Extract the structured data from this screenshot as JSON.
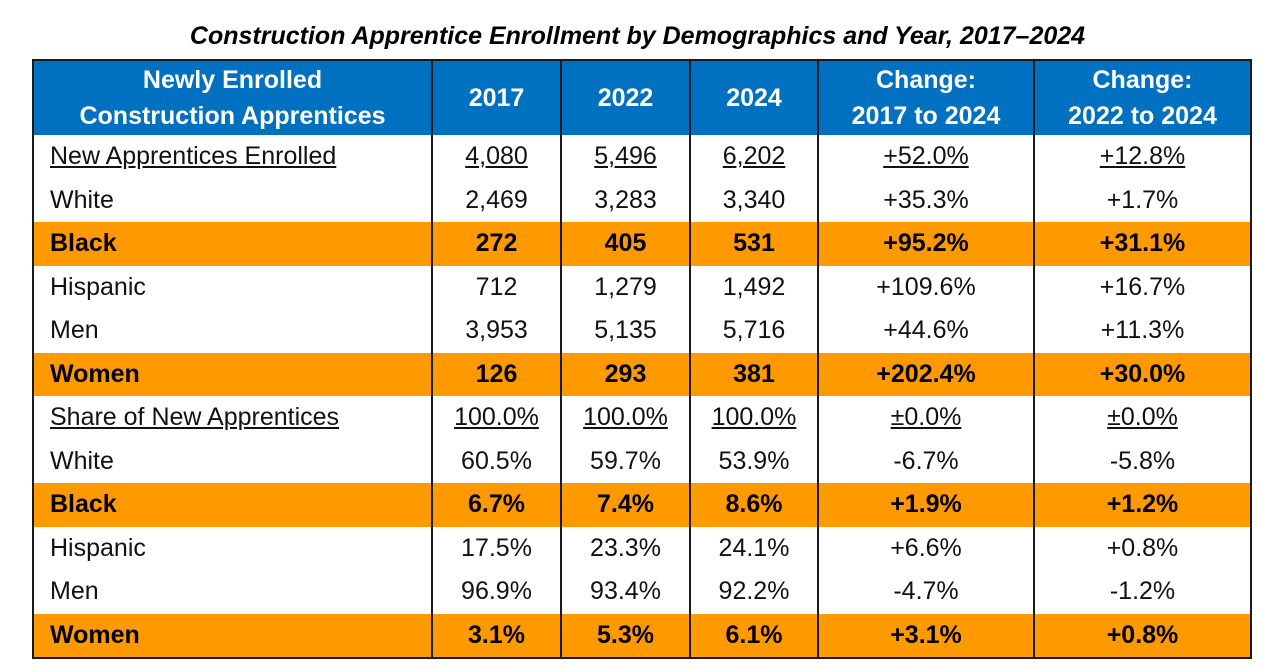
{
  "title": "Construction Apprentice Enrollment by Demographics and Year, 2017–2024",
  "colors": {
    "header_bg": "#0070c0",
    "highlight_bg": "#ff9900"
  },
  "columns": [
    "Newly Enrolled Construction Apprentices",
    "2017",
    "2022",
    "2024",
    "Change: 2017 to 2024",
    "Change: 2022 to 2024"
  ],
  "header": {
    "c0_line1": "Newly Enrolled",
    "c0_line2": "Construction Apprentices",
    "c1": "2017",
    "c2": "2022",
    "c3": "2024",
    "c4_line1": "Change:",
    "c4_line2": "2017 to 2024",
    "c5_line1": "Change:",
    "c5_line2": "2022 to 2024"
  },
  "rows": [
    {
      "cells": [
        "New Apprentices Enrolled",
        "4,080",
        "5,496",
        "6,202",
        "+52.0%",
        "+12.8%"
      ],
      "style": "underline"
    },
    {
      "cells": [
        "White",
        "2,469",
        "3,283",
        "3,340",
        "+35.3%",
        "+1.7%"
      ],
      "style": "normal"
    },
    {
      "cells": [
        "Black",
        "272",
        "405",
        "531",
        "+95.2%",
        "+31.1%"
      ],
      "style": "highlight"
    },
    {
      "cells": [
        "Hispanic",
        "712",
        "1,279",
        "1,492",
        "+109.6%",
        "+16.7%"
      ],
      "style": "normal"
    },
    {
      "cells": [
        "Men",
        "3,953",
        "5,135",
        "5,716",
        "+44.6%",
        "+11.3%"
      ],
      "style": "normal"
    },
    {
      "cells": [
        "Women",
        "126",
        "293",
        "381",
        "+202.4%",
        "+30.0%"
      ],
      "style": "highlight"
    },
    {
      "cells": [
        "Share of New Apprentices",
        "100.0%",
        "100.0%",
        "100.0%",
        "±0.0%",
        "±0.0%"
      ],
      "style": "underline"
    },
    {
      "cells": [
        "White",
        "60.5%",
        "59.7%",
        "53.9%",
        "-6.7%",
        "-5.8%"
      ],
      "style": "normal"
    },
    {
      "cells": [
        "Black",
        "6.7%",
        "7.4%",
        "8.6%",
        "+1.9%",
        "+1.2%"
      ],
      "style": "highlight"
    },
    {
      "cells": [
        "Hispanic",
        "17.5%",
        "23.3%",
        "24.1%",
        "+6.6%",
        "+0.8%"
      ],
      "style": "normal"
    },
    {
      "cells": [
        "Men",
        "96.9%",
        "93.4%",
        "92.2%",
        "-4.7%",
        "-1.2%"
      ],
      "style": "normal"
    },
    {
      "cells": [
        "Women",
        "3.1%",
        "5.3%",
        "6.1%",
        "+3.1%",
        "+0.8%"
      ],
      "style": "highlight"
    }
  ]
}
